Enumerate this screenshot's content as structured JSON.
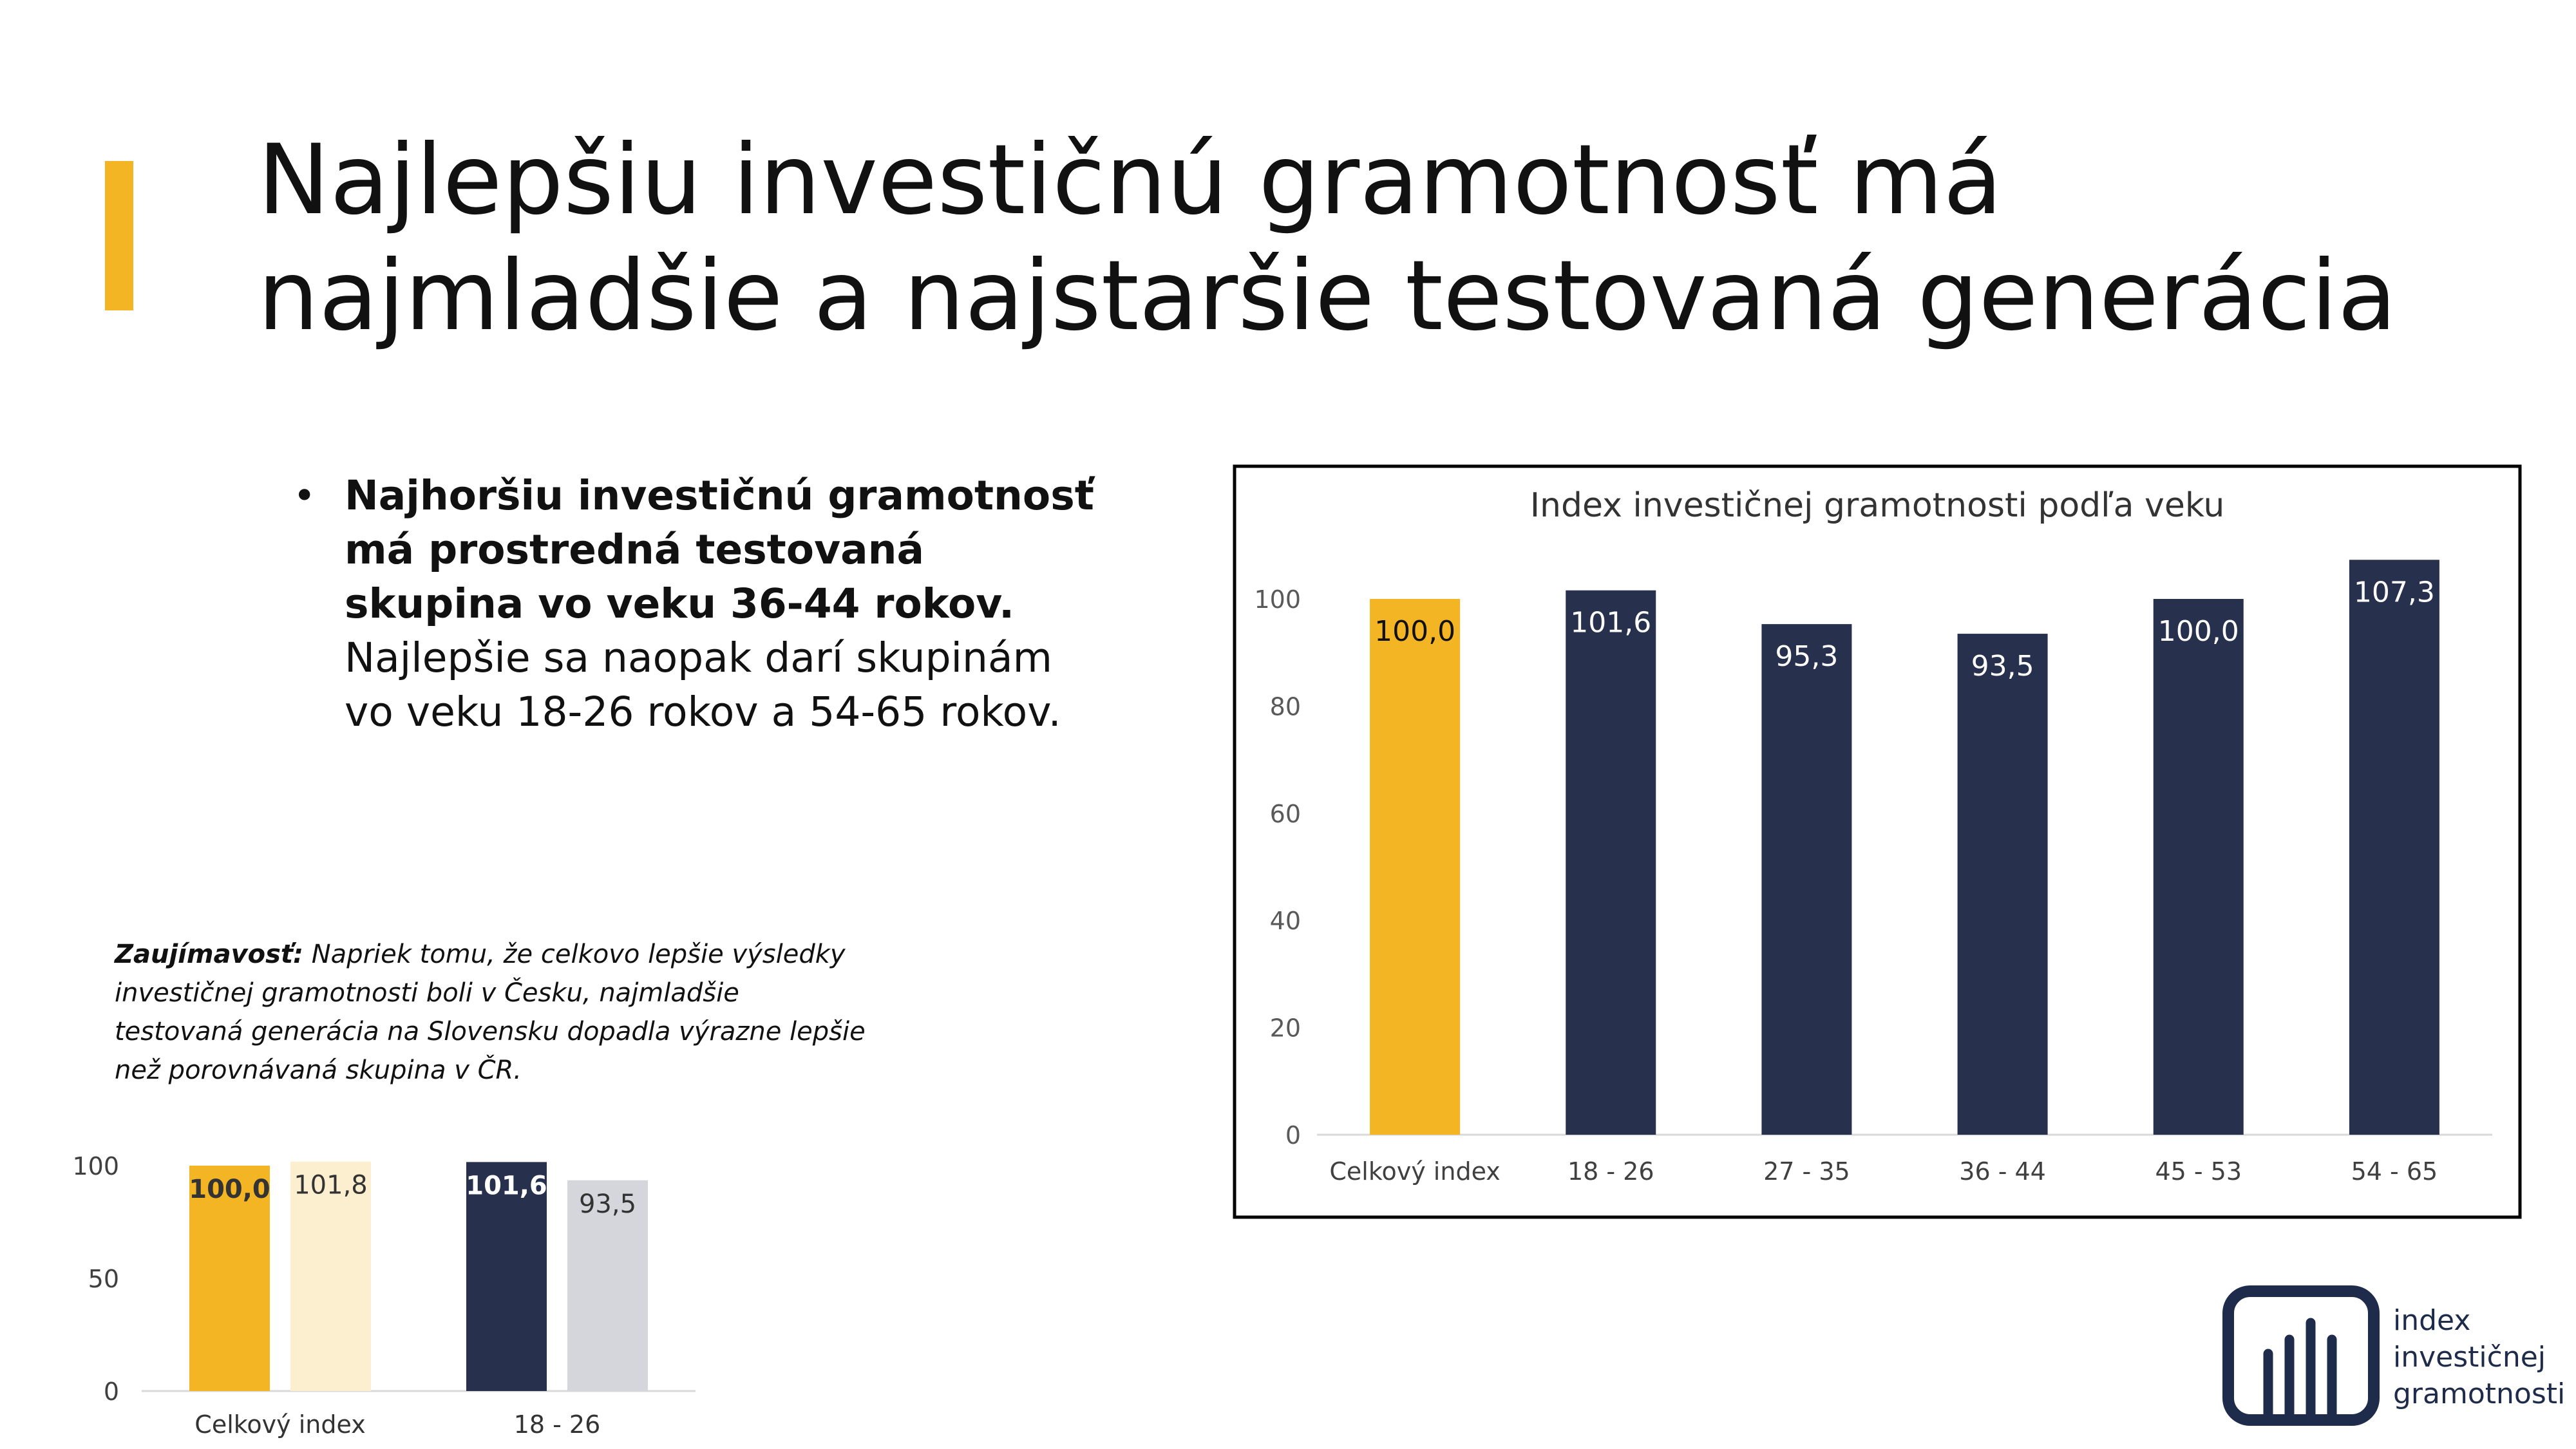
{
  "title": "Najlepšiu investičnú gramotnosť má najmladšie a najstaršie testovaná generácia",
  "bullet": {
    "bold": "Najhoršiu investičnú gramotnosť má prostredná testovaná skupina vo veku 36-44 rokov.",
    "rest": " Najlepšie sa naopak darí skupinám vo veku 18-26 rokov a 54-65 rokov."
  },
  "note": {
    "label": "Zaujímavosť:",
    "text": " Napriek tomu, že celkovo lepšie výsledky investičnej gramotnosti boli v Česku, najmladšie testovaná generácia na Slovensku dopadla výrazne lepšie než porovnávaná skupina v ČR."
  },
  "logo": {
    "line1": "index",
    "line2": "investičnej",
    "line3": "gramotnosti"
  },
  "colors": {
    "accent": "#f3b523",
    "navy": "#27314d",
    "light_yellow": "#fcefcf",
    "light_gray": "#d4d6db"
  },
  "chart_data": [
    {
      "type": "bar",
      "title": "Index investičnej gramotnosti podľa veku",
      "categories": [
        "Celkový index",
        "18 - 26",
        "27 - 35",
        "36 - 44",
        "45 - 53",
        "54 - 65"
      ],
      "values": [
        100.0,
        101.6,
        95.3,
        93.5,
        100.0,
        107.3
      ],
      "value_labels": [
        "100,0",
        "101,6",
        "95,3",
        "93,5",
        "100,0",
        "107,3"
      ],
      "bar_colors": [
        "#f3b523",
        "#27314d",
        "#27314d",
        "#27314d",
        "#27314d",
        "#27314d"
      ],
      "yticks": [
        "0",
        "20",
        "40",
        "60",
        "80",
        "100"
      ],
      "ylim": [
        0,
        100
      ],
      "grid": false,
      "legend": "none"
    },
    {
      "type": "bar",
      "title": "",
      "categories": [
        "Celkový index",
        "18 - 26"
      ],
      "series": [
        {
          "values": [
            100.0,
            101.6
          ],
          "value_labels": [
            "100,0",
            "101,6"
          ],
          "colors": [
            "#f3b523",
            "#27314d"
          ]
        },
        {
          "values": [
            101.8,
            93.5
          ],
          "value_labels": [
            "101,8",
            "93,5"
          ],
          "colors": [
            "#fcefcf",
            "#d4d6db"
          ]
        }
      ],
      "yticks": [
        "0",
        "50",
        "100"
      ],
      "ylim": [
        0,
        100
      ],
      "grid": false,
      "legend": "none"
    }
  ]
}
